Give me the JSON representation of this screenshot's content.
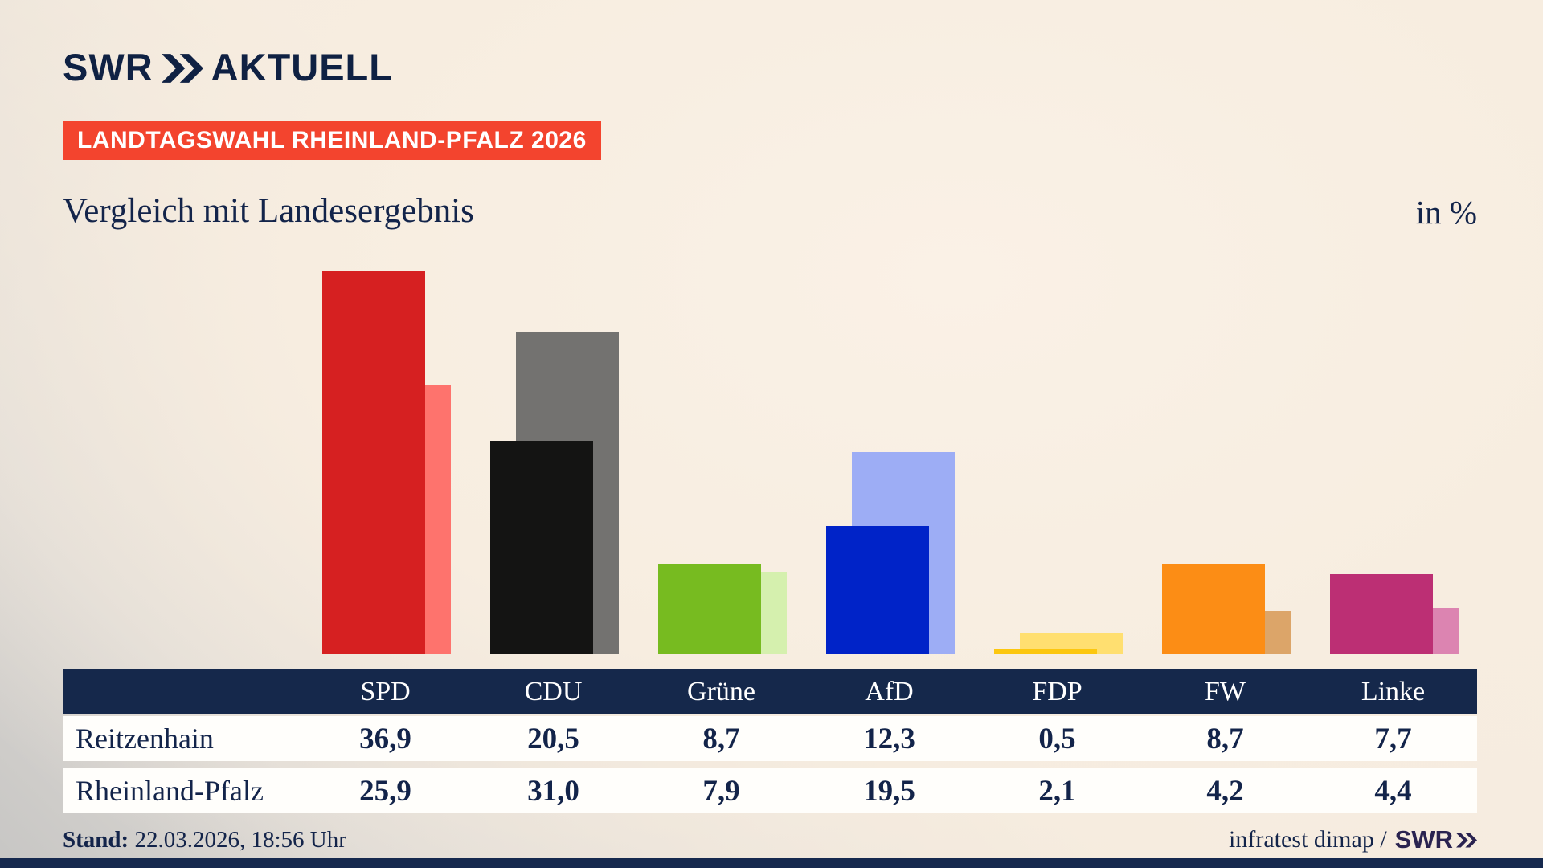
{
  "brand": {
    "logo_word": "SWR",
    "logo_suffix": "AKTUELL"
  },
  "badge": {
    "label": "LANDTAGSWAHL RHEINLAND-PFALZ 2026",
    "bg": "#f3442e"
  },
  "header": {
    "title": "Vergleich mit Landesergebnis",
    "unit_label": "in %"
  },
  "chart_data": {
    "type": "bar",
    "categories": [
      "SPD",
      "CDU",
      "Grüne",
      "AfD",
      "FDP",
      "FW",
      "Linke"
    ],
    "series": [
      {
        "name": "Reitzenhain",
        "values": [
          36.9,
          20.5,
          8.7,
          12.3,
          0.5,
          8.7,
          7.7
        ]
      },
      {
        "name": "Rheinland-Pfalz",
        "values": [
          25.9,
          31.0,
          7.9,
          19.5,
          2.1,
          4.2,
          4.4
        ]
      }
    ],
    "colors_local": [
      "#d62021",
      "#141413",
      "#77bb20",
      "#0023c8",
      "#fcc70f",
      "#fc8d15",
      "#bc2f74"
    ],
    "colors_state": [
      "#fe736d",
      "#737270",
      "#d5f0ae",
      "#9dadf5",
      "#ffdf70",
      "#dca569",
      "#dc84b1"
    ],
    "title": "Vergleich mit Landesergebnis",
    "unit": "%",
    "ylim": [
      0,
      37.5
    ],
    "grid": false,
    "legend_position": "table-below"
  },
  "table": {
    "header_labels": [
      "",
      "SPD",
      "CDU",
      "Grüne",
      "AfD",
      "FDP",
      "FW",
      "Linke"
    ],
    "rows": [
      {
        "label": "Reitzenhain",
        "values": [
          "36,9",
          "20,5",
          "8,7",
          "12,3",
          "0,5",
          "8,7",
          "7,7"
        ]
      },
      {
        "label": "Rheinland-Pfalz",
        "values": [
          "25,9",
          "31,0",
          "7,9",
          "19,5",
          "2,1",
          "4,2",
          "4,4"
        ]
      }
    ]
  },
  "footer": {
    "stand_label": "Stand:",
    "stand_value": "22.03.2026, 18:56 Uhr",
    "source_text": "infratest dimap /",
    "source_brand": "SWR"
  },
  "colors": {
    "navy": "#15284b",
    "text_navy": "#13244a",
    "badge_red": "#f3442e",
    "background_cream": "#f8efe3"
  }
}
